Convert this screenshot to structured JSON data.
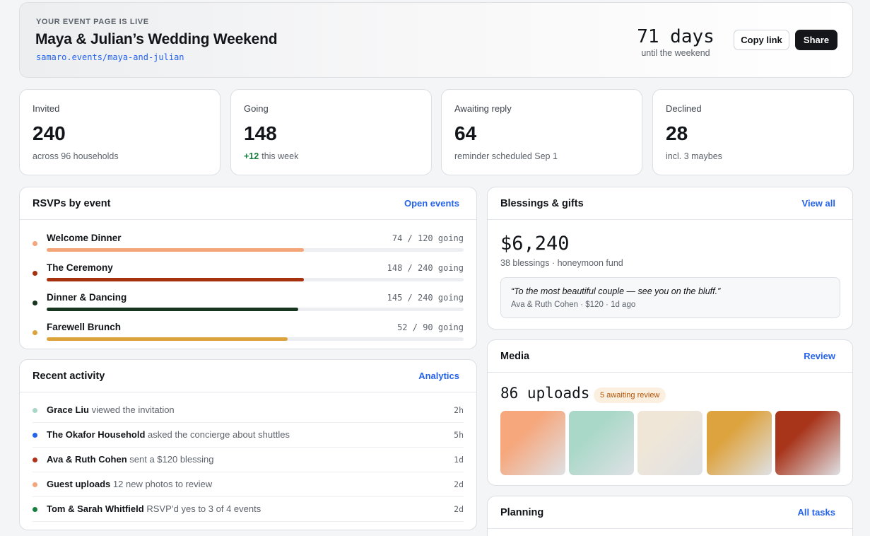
{
  "hero": {
    "eyebrow": "YOUR EVENT PAGE IS LIVE",
    "title": "Maya & Julian’s Wedding Weekend",
    "url": "samaro.events/maya-and-julian",
    "countdown": "71 days",
    "countdown_sub": "until the weekend",
    "copy_label": "Copy link",
    "share_label": "Share"
  },
  "stats": [
    {
      "label": "Invited",
      "value": "240",
      "sub": "across 96 households",
      "delta": ""
    },
    {
      "label": "Going",
      "value": "148",
      "sub": "this week",
      "delta": "+12"
    },
    {
      "label": "Awaiting reply",
      "value": "64",
      "sub": "reminder scheduled Sep 1",
      "delta": ""
    },
    {
      "label": "Declined",
      "value": "28",
      "sub": "incl. 3 maybes",
      "delta": ""
    }
  ],
  "rsvp": {
    "title": "RSVPs by event",
    "link": "Open events",
    "events": [
      {
        "name": "Welcome Dinner",
        "count": "74 / 120 going",
        "going": 74,
        "total": 120,
        "color": "#f4a57a"
      },
      {
        "name": "The Ceremony",
        "count": "148 / 240 going",
        "going": 148,
        "total": 240,
        "color": "#a5310f"
      },
      {
        "name": "Dinner & Dancing",
        "count": "145 / 240 going",
        "going": 145,
        "total": 240,
        "color": "#17351f"
      },
      {
        "name": "Farewell Brunch",
        "count": "52 / 90 going",
        "going": 52,
        "total": 90,
        "color": "#dca23c"
      }
    ]
  },
  "activity": {
    "title": "Recent activity",
    "link": "Analytics",
    "items": [
      {
        "who": "Grace Liu",
        "what": "viewed the invitation",
        "time": "2h",
        "color": "#a7d8c6"
      },
      {
        "who": "The Okafor Household",
        "what": "asked the concierge about shuttles",
        "time": "5h",
        "color": "#2563eb"
      },
      {
        "who": "Ava & Ruth Cohen",
        "what": "sent a $120 blessing",
        "time": "1d",
        "color": "#b0321a"
      },
      {
        "who": "Guest uploads",
        "what": "12 new photos to review",
        "time": "2d",
        "color": "#f4a57a"
      },
      {
        "who": "Tom & Sarah Whitfield",
        "what": "RSVP’d yes to 3 of 4 events",
        "time": "2d",
        "color": "#15803d"
      }
    ]
  },
  "blessings": {
    "title": "Blessings & gifts",
    "link": "View all",
    "amount": "$6,240",
    "sub": "38 blessings · honeymoon fund",
    "quote": "“To the most beautiful couple — see you on the bluff.”",
    "quote_by": "Ava & Ruth Cohen · $120 · 1d ago"
  },
  "media": {
    "title": "Media",
    "link": "Review",
    "count": "86 uploads",
    "badge": "5 awaiting review",
    "thumbs": [
      "#f6a77c",
      "#aad8c8",
      "#efe6d8",
      "#dda33f",
      "#a8341a"
    ]
  },
  "planning": {
    "title": "Planning",
    "link": "All tasks"
  }
}
